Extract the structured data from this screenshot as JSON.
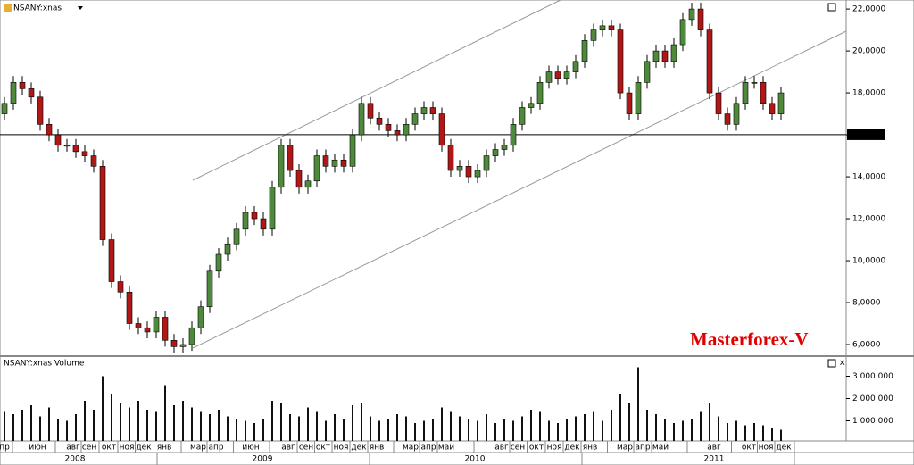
{
  "chart_data": {
    "type": "candlestick",
    "title": "NSANY:xnas",
    "volume_title": "NSANY:xnas Volume",
    "watermark": "Masterforex-V",
    "up_color": "#4f8a3c",
    "down_color": "#b01818",
    "volume_color": "#111111",
    "ylim": [
      5.49,
      22.43
    ],
    "yticks": [
      {
        "value": 6,
        "label": "6,0000"
      },
      {
        "value": 8,
        "label": "8,0000"
      },
      {
        "value": 10,
        "label": "10,0000"
      },
      {
        "value": 12,
        "label": "12,0000"
      },
      {
        "value": 14,
        "label": "14,0000"
      },
      {
        "value": 16,
        "label": "16,0000"
      },
      {
        "value": 18,
        "label": "18,0000"
      },
      {
        "value": 20,
        "label": "20,0000"
      },
      {
        "value": 22,
        "label": "22,0000"
      }
    ],
    "hline": {
      "value": 16.0063,
      "label": "16,0063"
    },
    "volume_ylim": [
      100000,
      3860000
    ],
    "volume_yticks": [
      {
        "value": 1000000,
        "label": "1 000 000"
      },
      {
        "value": 2000000,
        "label": "2 000 000"
      },
      {
        "value": 3000000,
        "label": "3 000 000"
      }
    ],
    "months": [
      "пр",
      "июн",
      "авг",
      "сен",
      "окт",
      "ноя",
      "дек",
      "янв",
      "мар",
      "апр",
      "июн",
      "авг",
      "сен",
      "окт",
      "ноя",
      "дек",
      "янв",
      "мар",
      "апр",
      "май",
      "авг",
      "сен",
      "окт",
      "ноя",
      "дек",
      "янв",
      "мар",
      "апр",
      "май",
      "авг",
      "окт",
      "ноя",
      "дек"
    ],
    "years": [
      "2008",
      "2009",
      "2010",
      "2011"
    ],
    "ohlc": [
      [
        17,
        17.8,
        16.7,
        17.5
      ],
      [
        17.5,
        18.8,
        17.2,
        18.5
      ],
      [
        18.5,
        18.8,
        17.9,
        18.2
      ],
      [
        18.2,
        18.5,
        17.5,
        17.8
      ],
      [
        17.8,
        18.1,
        16.2,
        16.5
      ],
      [
        16.5,
        16.8,
        15.7,
        16
      ],
      [
        16,
        16.3,
        15.2,
        15.5
      ],
      [
        15.5,
        15.8,
        15.2,
        15.5
      ],
      [
        15.5,
        15.8,
        14.9,
        15.2
      ],
      [
        15.2,
        15.5,
        14.7,
        15
      ],
      [
        15,
        15.3,
        14.2,
        14.5
      ],
      [
        14.5,
        14.8,
        10.7,
        11
      ],
      [
        11,
        11.3,
        8.7,
        9
      ],
      [
        9,
        9.3,
        8.2,
        8.5
      ],
      [
        8.5,
        8.8,
        6.7,
        7
      ],
      [
        7,
        7.3,
        6.5,
        6.8
      ],
      [
        6.8,
        7.1,
        6.3,
        6.6
      ],
      [
        6.6,
        7.6,
        6.3,
        7.3
      ],
      [
        7.3,
        7.6,
        5.9,
        6.2
      ],
      [
        6.2,
        6.5,
        5.6,
        5.9
      ],
      [
        5.9,
        6.3,
        5.6,
        6
      ],
      [
        6,
        7.1,
        5.7,
        6.8
      ],
      [
        6.8,
        8.1,
        6.5,
        7.8
      ],
      [
        7.8,
        9.8,
        7.5,
        9.5
      ],
      [
        9.5,
        10.6,
        9.2,
        10.3
      ],
      [
        10.3,
        11.1,
        10,
        10.8
      ],
      [
        10.8,
        11.8,
        10.5,
        11.5
      ],
      [
        11.5,
        12.6,
        11.2,
        12.3
      ],
      [
        12.3,
        12.6,
        11.7,
        12
      ],
      [
        12,
        12.3,
        11.2,
        11.5
      ],
      [
        11.5,
        13.8,
        11.2,
        13.5
      ],
      [
        13.5,
        15.8,
        13.2,
        15.5
      ],
      [
        15.5,
        15.8,
        14,
        14.3
      ],
      [
        14.3,
        14.6,
        13.2,
        13.5
      ],
      [
        13.5,
        14.1,
        13.2,
        13.8
      ],
      [
        13.8,
        15.3,
        13.5,
        15
      ],
      [
        15,
        15.3,
        14.2,
        14.5
      ],
      [
        14.5,
        15.1,
        14.2,
        14.8
      ],
      [
        14.8,
        15.1,
        14.2,
        14.5
      ],
      [
        14.5,
        16.3,
        14.2,
        16
      ],
      [
        16,
        17.8,
        15.7,
        17.5
      ],
      [
        17.5,
        17.8,
        16.5,
        16.8
      ],
      [
        16.8,
        17.1,
        16.2,
        16.5
      ],
      [
        16.5,
        16.8,
        15.9,
        16.2
      ],
      [
        16.2,
        16.5,
        15.7,
        16
      ],
      [
        16,
        16.8,
        15.7,
        16.5
      ],
      [
        16.5,
        17.3,
        16.2,
        17
      ],
      [
        17,
        17.6,
        16.7,
        17.3
      ],
      [
        17.3,
        17.6,
        16.7,
        17
      ],
      [
        17,
        17.3,
        15.2,
        15.5
      ],
      [
        15.5,
        15.8,
        14,
        14.3
      ],
      [
        14.3,
        14.8,
        14,
        14.5
      ],
      [
        14.5,
        14.8,
        13.7,
        14
      ],
      [
        14,
        14.6,
        13.7,
        14.3
      ],
      [
        14.3,
        15.3,
        14,
        15
      ],
      [
        15,
        15.6,
        14.7,
        15.3
      ],
      [
        15.3,
        15.8,
        15,
        15.5
      ],
      [
        15.5,
        16.8,
        15.2,
        16.5
      ],
      [
        16.5,
        17.6,
        16.2,
        17.3
      ],
      [
        17.3,
        17.8,
        17,
        17.5
      ],
      [
        17.5,
        18.8,
        17.2,
        18.5
      ],
      [
        18.5,
        19.3,
        18.2,
        19
      ],
      [
        19,
        19.3,
        18.4,
        18.7
      ],
      [
        18.7,
        19.3,
        18.4,
        19
      ],
      [
        19,
        19.8,
        18.7,
        19.5
      ],
      [
        19.5,
        20.8,
        19.2,
        20.5
      ],
      [
        20.5,
        21.3,
        20.2,
        21
      ],
      [
        21,
        21.5,
        20.7,
        21.2
      ],
      [
        21.2,
        21.5,
        20.7,
        21
      ],
      [
        21,
        21.3,
        17.7,
        18
      ],
      [
        18,
        18.3,
        16.7,
        17
      ],
      [
        17,
        18.8,
        16.7,
        18.5
      ],
      [
        18.5,
        19.8,
        18.2,
        19.5
      ],
      [
        19.5,
        20.3,
        19.2,
        20
      ],
      [
        20,
        20.3,
        19.2,
        19.5
      ],
      [
        19.5,
        20.6,
        19.2,
        20.3
      ],
      [
        20.3,
        21.8,
        20,
        21.5
      ],
      [
        21.5,
        22.3,
        21.2,
        22
      ],
      [
        22,
        22.3,
        20.7,
        21
      ],
      [
        21,
        21.3,
        17.7,
        18
      ],
      [
        18,
        18.3,
        16.7,
        17
      ],
      [
        17,
        17.3,
        16.2,
        16.5
      ],
      [
        16.5,
        17.8,
        16.2,
        17.5
      ],
      [
        17.5,
        18.8,
        17.2,
        18.5
      ],
      [
        18.5,
        18.8,
        18.2,
        18.5
      ],
      [
        18.5,
        18.8,
        17.2,
        17.5
      ],
      [
        17.5,
        17.8,
        16.7,
        17
      ],
      [
        17,
        18.3,
        16.7,
        18
      ]
    ],
    "volume": [
      1400000,
      1300000,
      1500000,
      1700000,
      1200000,
      1600000,
      1100000,
      1000000,
      1300000,
      1900000,
      1500000,
      3000000,
      2200000,
      1800000,
      1600000,
      1900000,
      1500000,
      1400000,
      2600000,
      1700000,
      1900000,
      1600000,
      1400000,
      1300000,
      1500000,
      1200000,
      1100000,
      1000000,
      900000,
      1100000,
      1900000,
      1800000,
      1300000,
      1200000,
      1600000,
      1400000,
      1000000,
      1300000,
      1100000,
      1700000,
      1800000,
      1200000,
      1000000,
      1100000,
      1300000,
      1200000,
      900000,
      1000000,
      1100000,
      1600000,
      1400000,
      1200000,
      1100000,
      1000000,
      1300000,
      900000,
      1100000,
      1000000,
      1200000,
      1500000,
      1400000,
      1000000,
      900000,
      1100000,
      1200000,
      1300000,
      1400000,
      1000000,
      1500000,
      2200000,
      1800000,
      3400000,
      1500000,
      1300000,
      1100000,
      900000,
      1000000,
      1100000,
      1400000,
      1800000,
      1200000,
      900000,
      1000000,
      800000,
      900000,
      800000,
      700000,
      600000
    ]
  }
}
